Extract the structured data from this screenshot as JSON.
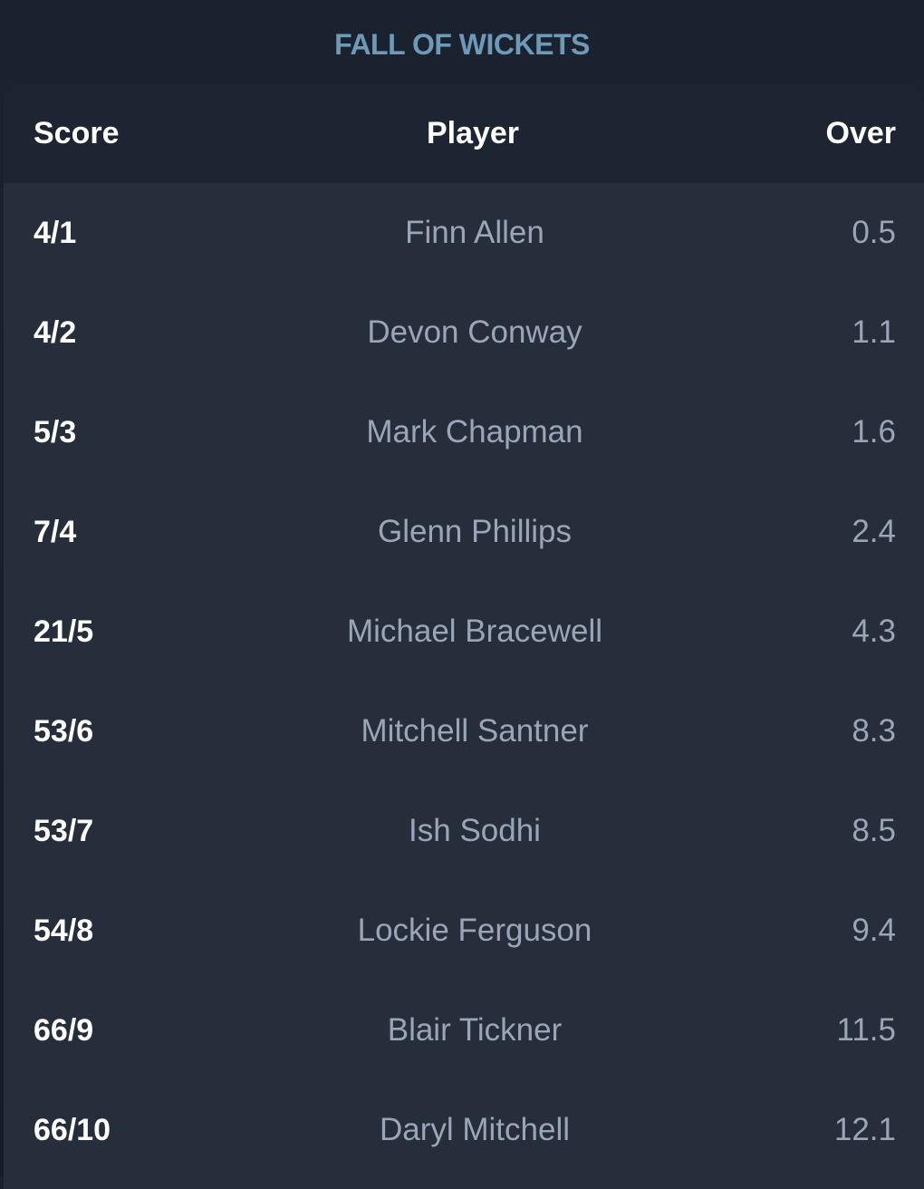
{
  "title": "FALL OF WICKETS",
  "columns": {
    "score": "Score",
    "player": "Player",
    "over": "Over"
  },
  "rows": [
    {
      "score": "4/1",
      "player": "Finn Allen",
      "over": "0.5"
    },
    {
      "score": "4/2",
      "player": "Devon Conway",
      "over": "1.1"
    },
    {
      "score": "5/3",
      "player": "Mark Chapman",
      "over": "1.6"
    },
    {
      "score": "7/4",
      "player": "Glenn Phillips",
      "over": "2.4"
    },
    {
      "score": "21/5",
      "player": "Michael Bracewell",
      "over": "4.3"
    },
    {
      "score": "53/6",
      "player": "Mitchell Santner",
      "over": "8.3"
    },
    {
      "score": "53/7",
      "player": "Ish Sodhi",
      "over": "8.5"
    },
    {
      "score": "54/8",
      "player": "Lockie Ferguson",
      "over": "9.4"
    },
    {
      "score": "66/9",
      "player": "Blair Tickner",
      "over": "11.5"
    },
    {
      "score": "66/10",
      "player": "Daryl Mitchell",
      "over": "12.1"
    }
  ]
}
